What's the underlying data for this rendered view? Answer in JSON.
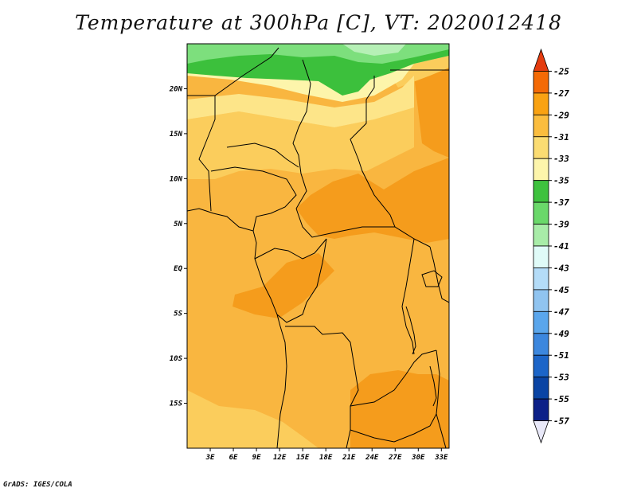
{
  "title": "Temperature at 300hPa [C], VT: 2020012418",
  "credit": "GrADS: IGES/COLA",
  "map": {
    "lat_range": [
      -20,
      25
    ],
    "lon_range": [
      0,
      34
    ],
    "lat_labels": [
      "20N",
      "15N",
      "10N",
      "5N",
      "EQ",
      "5S",
      "10S",
      "15S"
    ],
    "lat_values": [
      20,
      15,
      10,
      5,
      0,
      -5,
      -10,
      -15
    ],
    "lon_labels": [
      "3E",
      "6E",
      "9E",
      "12E",
      "15E",
      "18E",
      "21E",
      "24E",
      "27E",
      "30E",
      "33E"
    ],
    "lon_values": [
      3,
      6,
      9,
      12,
      15,
      18,
      21,
      24,
      27,
      30,
      33
    ]
  },
  "colorbar": {
    "labels": [
      "-25",
      "-27",
      "-29",
      "-31",
      "-33",
      "-35",
      "-37",
      "-39",
      "-41",
      "-43",
      "-45",
      "-47",
      "-49",
      "-51",
      "-53",
      "-55",
      "-57"
    ],
    "colors": [
      "#e43c0f",
      "#f46a05",
      "#f9a212",
      "#fbbd3e",
      "#fbdc72",
      "#fdf5ab",
      "#3ec23e",
      "#6ad86a",
      "#a8eca8",
      "#e0fbf8",
      "#b4dcf8",
      "#90c4f0",
      "#5aa6ec",
      "#3c87de",
      "#1c65c8",
      "#0a44a4",
      "#0c2088",
      "#e8e8f8"
    ]
  }
}
